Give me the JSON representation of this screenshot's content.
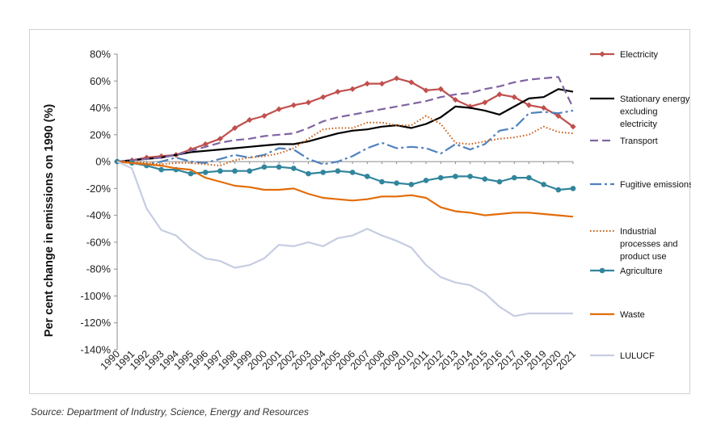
{
  "source": "Source: Department of Industry, Science, Energy and Resources",
  "chart_data": {
    "type": "line",
    "title": "",
    "xlabel": "",
    "ylabel": "Per cent change in emissions on 1990 (%)",
    "ylim": [
      -140,
      80
    ],
    "yticks": [
      80,
      60,
      40,
      20,
      0,
      -20,
      -40,
      -60,
      -80,
      -100,
      -120,
      -140
    ],
    "ytick_labels": [
      "80%",
      "60%",
      "40%",
      "20%",
      "0%",
      "-20%",
      "-40%",
      "-60%",
      "-80%",
      "-100%",
      "-120%",
      "-140%"
    ],
    "categories": [
      "1990",
      "1991",
      "1992",
      "1993",
      "1994",
      "1995",
      "1996",
      "1997",
      "1998",
      "1999",
      "2000",
      "2001",
      "2002",
      "2003",
      "2004",
      "2005",
      "2006",
      "2007",
      "2008",
      "2009",
      "2010",
      "2011",
      "2012",
      "2013",
      "2014",
      "2015",
      "2016",
      "2017",
      "2018",
      "2019",
      "2020",
      "2021"
    ],
    "grid": false,
    "legend_position": "right",
    "series": [
      {
        "name": "Electricity",
        "color": "#c0504d",
        "dash": "solid",
        "marker": "diamond",
        "values": [
          0,
          1,
          3,
          4,
          5,
          9,
          13,
          17,
          25,
          31,
          34,
          39,
          42,
          44,
          48,
          52,
          54,
          58,
          58,
          62,
          59,
          53,
          54,
          46,
          41,
          44,
          50,
          48,
          42,
          40,
          34,
          26
        ]
      },
      {
        "name": "Stationary energy excluding electricity",
        "name_lines": [
          "Stationary energy",
          "excluding",
          "electricity"
        ],
        "color": "#000000",
        "dash": "solid",
        "marker": "none",
        "values": [
          0,
          1,
          2,
          3,
          5,
          7,
          8,
          9,
          10,
          11,
          12,
          13,
          13,
          15,
          18,
          21,
          23,
          24,
          26,
          27,
          25,
          28,
          33,
          41,
          40,
          38,
          35,
          41,
          47,
          48,
          54,
          52
        ]
      },
      {
        "name": "Transport",
        "color": "#8064a2",
        "dash": "longdash",
        "marker": "none",
        "values": [
          0,
          1,
          2,
          3,
          5,
          8,
          11,
          14,
          16,
          17,
          19,
          20,
          21,
          25,
          30,
          33,
          35,
          37,
          39,
          41,
          43,
          45,
          48,
          50,
          51,
          54,
          56,
          59,
          61,
          62,
          63,
          40
        ]
      },
      {
        "name": "Fugitive emissions",
        "color": "#4f81bd",
        "dash": "dashdot",
        "marker": "none",
        "values": [
          0,
          -1,
          -2,
          0,
          3,
          0,
          -1,
          2,
          5,
          3,
          5,
          10,
          9,
          2,
          -2,
          0,
          4,
          10,
          14,
          10,
          11,
          10,
          6,
          13,
          9,
          13,
          23,
          25,
          36,
          37,
          36,
          38
        ]
      },
      {
        "name": "Industrial processes and product use",
        "name_lines": [
          "Industrial",
          "processes and",
          "product use"
        ],
        "color": "#c55a11",
        "dash": "dotted",
        "marker": "none",
        "values": [
          0,
          0,
          -1,
          -2,
          -1,
          -1,
          -2,
          -3,
          1,
          3,
          4,
          6,
          10,
          17,
          24,
          25,
          25,
          29,
          29,
          27,
          27,
          34,
          28,
          14,
          13,
          15,
          17,
          18,
          20,
          26,
          22,
          21
        ]
      },
      {
        "name": "Agriculture",
        "color": "#31859c",
        "dash": "solid",
        "marker": "circle",
        "values": [
          0,
          -1,
          -3,
          -6,
          -6,
          -9,
          -8,
          -7,
          -7,
          -7,
          -4,
          -4,
          -5,
          -9,
          -8,
          -7,
          -8,
          -11,
          -15,
          -16,
          -17,
          -14,
          -12,
          -11,
          -11,
          -13,
          -15,
          -12,
          -12,
          -17,
          -21,
          -20
        ]
      },
      {
        "name": "Waste",
        "color": "#e36c09",
        "dash": "solid",
        "marker": "none",
        "values": [
          0,
          -1,
          -2,
          -3,
          -5,
          -6,
          -12,
          -15,
          -18,
          -19,
          -21,
          -21,
          -20,
          -24,
          -27,
          -28,
          -29,
          -28,
          -26,
          -26,
          -25,
          -27,
          -34,
          -37,
          -38,
          -40,
          -39,
          -38,
          -38,
          -39,
          -40,
          -41
        ]
      },
      {
        "name": "LULUCF",
        "color": "#c6cde2",
        "dash": "solid",
        "marker": "none",
        "values": [
          0,
          -5,
          -35,
          -51,
          -55,
          -65,
          -72,
          -74,
          -79,
          -77,
          -72,
          -62,
          -63,
          -60,
          -63,
          -57,
          -55,
          -50,
          -55,
          -59,
          -64,
          -77,
          -86,
          -90,
          -92,
          -98,
          -108,
          -115,
          -113,
          -113,
          -113,
          -113
        ]
      }
    ]
  }
}
